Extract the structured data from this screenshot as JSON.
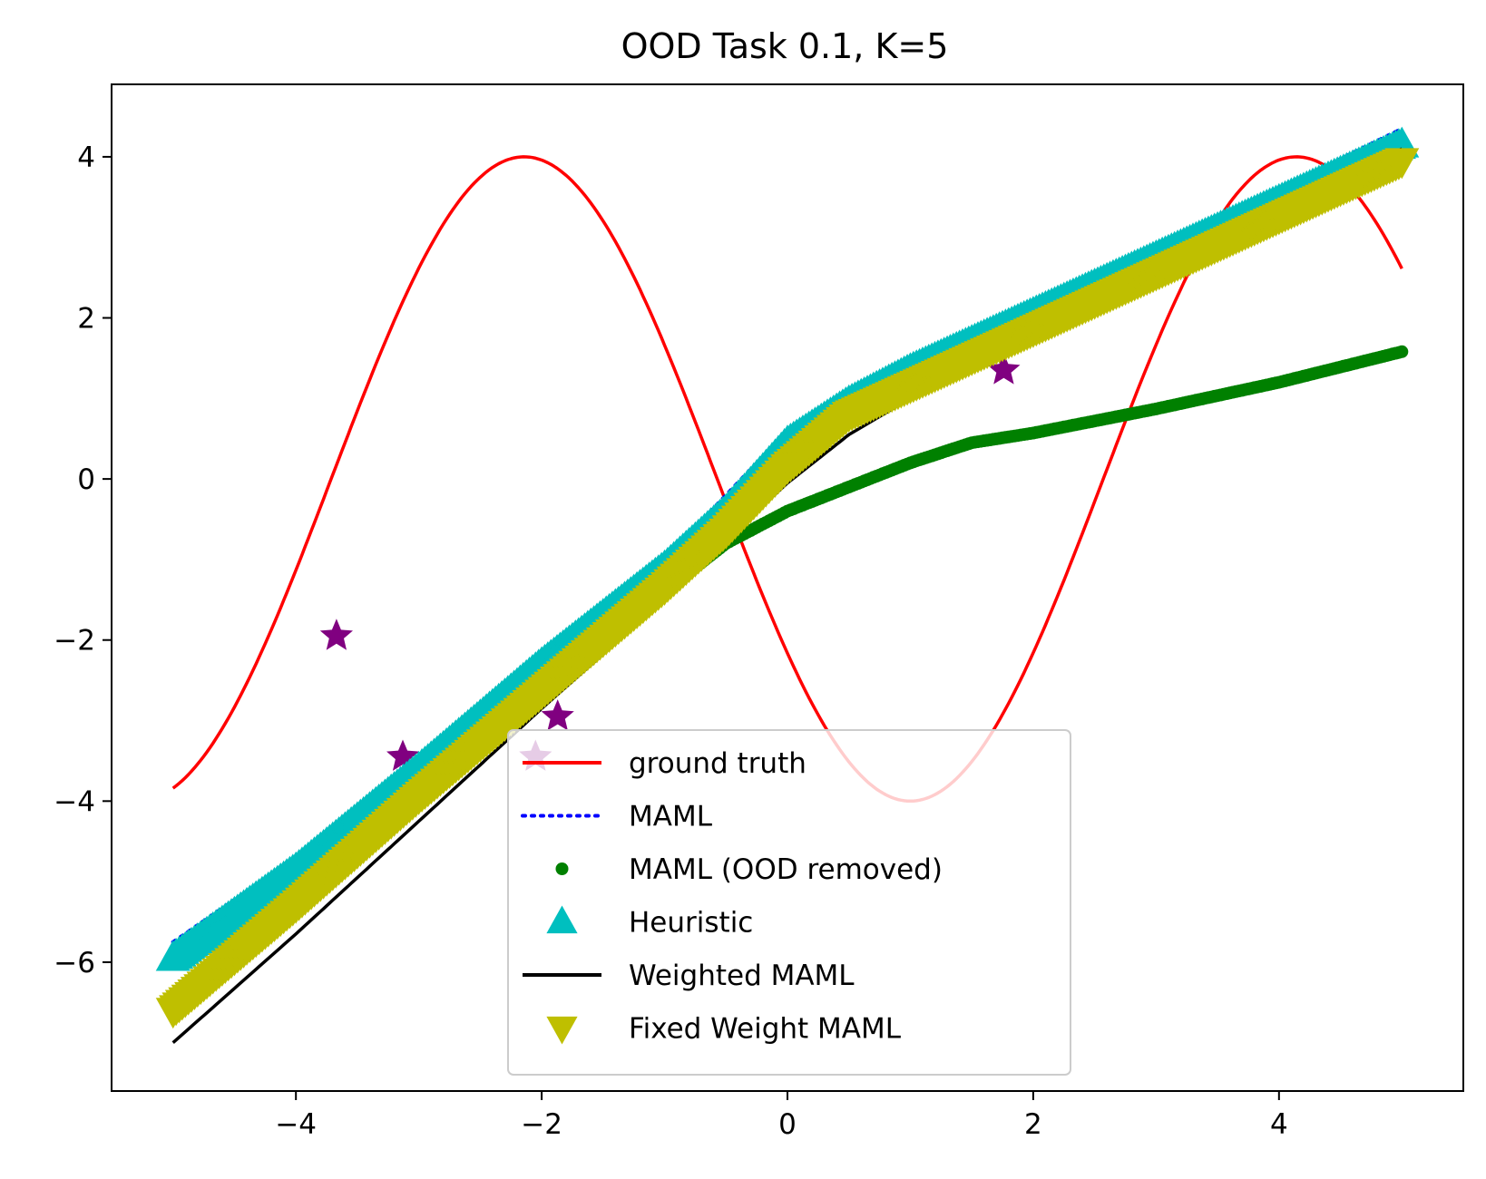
{
  "chart_data": {
    "type": "line",
    "title": "OOD Task 0.1, K=5",
    "xlabel": "",
    "ylabel": "",
    "xlim": [
      -5.5,
      5.5
    ],
    "ylim": [
      -7.6,
      4.9
    ],
    "xticks": [
      -4,
      -2,
      0,
      2,
      4
    ],
    "yticks": [
      4,
      2,
      0,
      -2,
      -4,
      -6
    ],
    "xtick_labels": [
      "−4",
      "−2",
      "0",
      "2",
      "4"
    ],
    "ytick_labels": [
      "4",
      "2",
      "0",
      "−2",
      "−4",
      "−6"
    ],
    "grid": false,
    "legend_position": "lower-center",
    "x_range": [
      -5,
      5
    ],
    "series": [
      {
        "name": "ground truth",
        "style": "solid-line",
        "color": "#ff0000",
        "function": "4*sin(x - 2.57)"
      },
      {
        "name": "MAML",
        "style": "dotted-line",
        "color": "#0000ff",
        "x": [
          -5,
          -4,
          -3,
          -2,
          -1,
          -0.5,
          0,
          0.5,
          1,
          2,
          3,
          4,
          5
        ],
        "y": [
          -5.75,
          -4.7,
          -3.5,
          -2.25,
          -1.0,
          -0.2,
          0.6,
          1.05,
          1.4,
          2.1,
          2.85,
          3.6,
          4.35
        ]
      },
      {
        "name": "MAML (OOD removed)",
        "style": "dot-markers",
        "color": "#008000",
        "x": [
          -5,
          -4,
          -3,
          -2,
          -1.5,
          -1,
          -0.5,
          0,
          0.5,
          1,
          1.5,
          2,
          3,
          4,
          5
        ],
        "y": [
          -5.9,
          -4.8,
          -3.75,
          -2.6,
          -2.0,
          -1.4,
          -0.8,
          -0.4,
          -0.1,
          0.2,
          0.45,
          0.57,
          0.87,
          1.2,
          1.58
        ]
      },
      {
        "name": "Heuristic",
        "style": "triangle-up-markers",
        "color": "#00bfbf",
        "x": [
          -5,
          -4,
          -3,
          -2,
          -1,
          -0.5,
          0,
          0.5,
          1,
          2,
          3,
          4,
          5
        ],
        "y": [
          -5.95,
          -4.85,
          -3.6,
          -2.3,
          -1.1,
          -0.4,
          0.45,
          0.95,
          1.35,
          2.05,
          2.75,
          3.45,
          4.15
        ]
      },
      {
        "name": "Weighted MAML",
        "style": "solid-line",
        "color": "#000000",
        "x": [
          -5,
          -4,
          -3,
          -2,
          -1,
          -0.5,
          0,
          0.5,
          1,
          2,
          3,
          4,
          5
        ],
        "y": [
          -7.0,
          -5.65,
          -4.25,
          -2.85,
          -1.5,
          -0.75,
          -0.05,
          0.55,
          1.0,
          1.8,
          2.55,
          3.3,
          4.1
        ]
      },
      {
        "name": "Fixed Weight MAML",
        "style": "triangle-down-markers",
        "color": "#bfbf00",
        "x": [
          -5,
          -4,
          -3,
          -2,
          -1,
          -0.5,
          0,
          0.5,
          1,
          2,
          3,
          4,
          5
        ],
        "y": [
          -6.6,
          -5.3,
          -3.95,
          -2.65,
          -1.35,
          -0.65,
          0.15,
          0.8,
          1.15,
          1.85,
          2.55,
          3.25,
          3.95
        ]
      }
    ],
    "support_points": {
      "color": "#800080",
      "marker": "star",
      "x": [
        -3.67,
        -3.13,
        -2.05,
        -1.87,
        1.76
      ],
      "y": [
        -1.95,
        -3.45,
        -3.45,
        -2.95,
        1.35
      ]
    }
  }
}
